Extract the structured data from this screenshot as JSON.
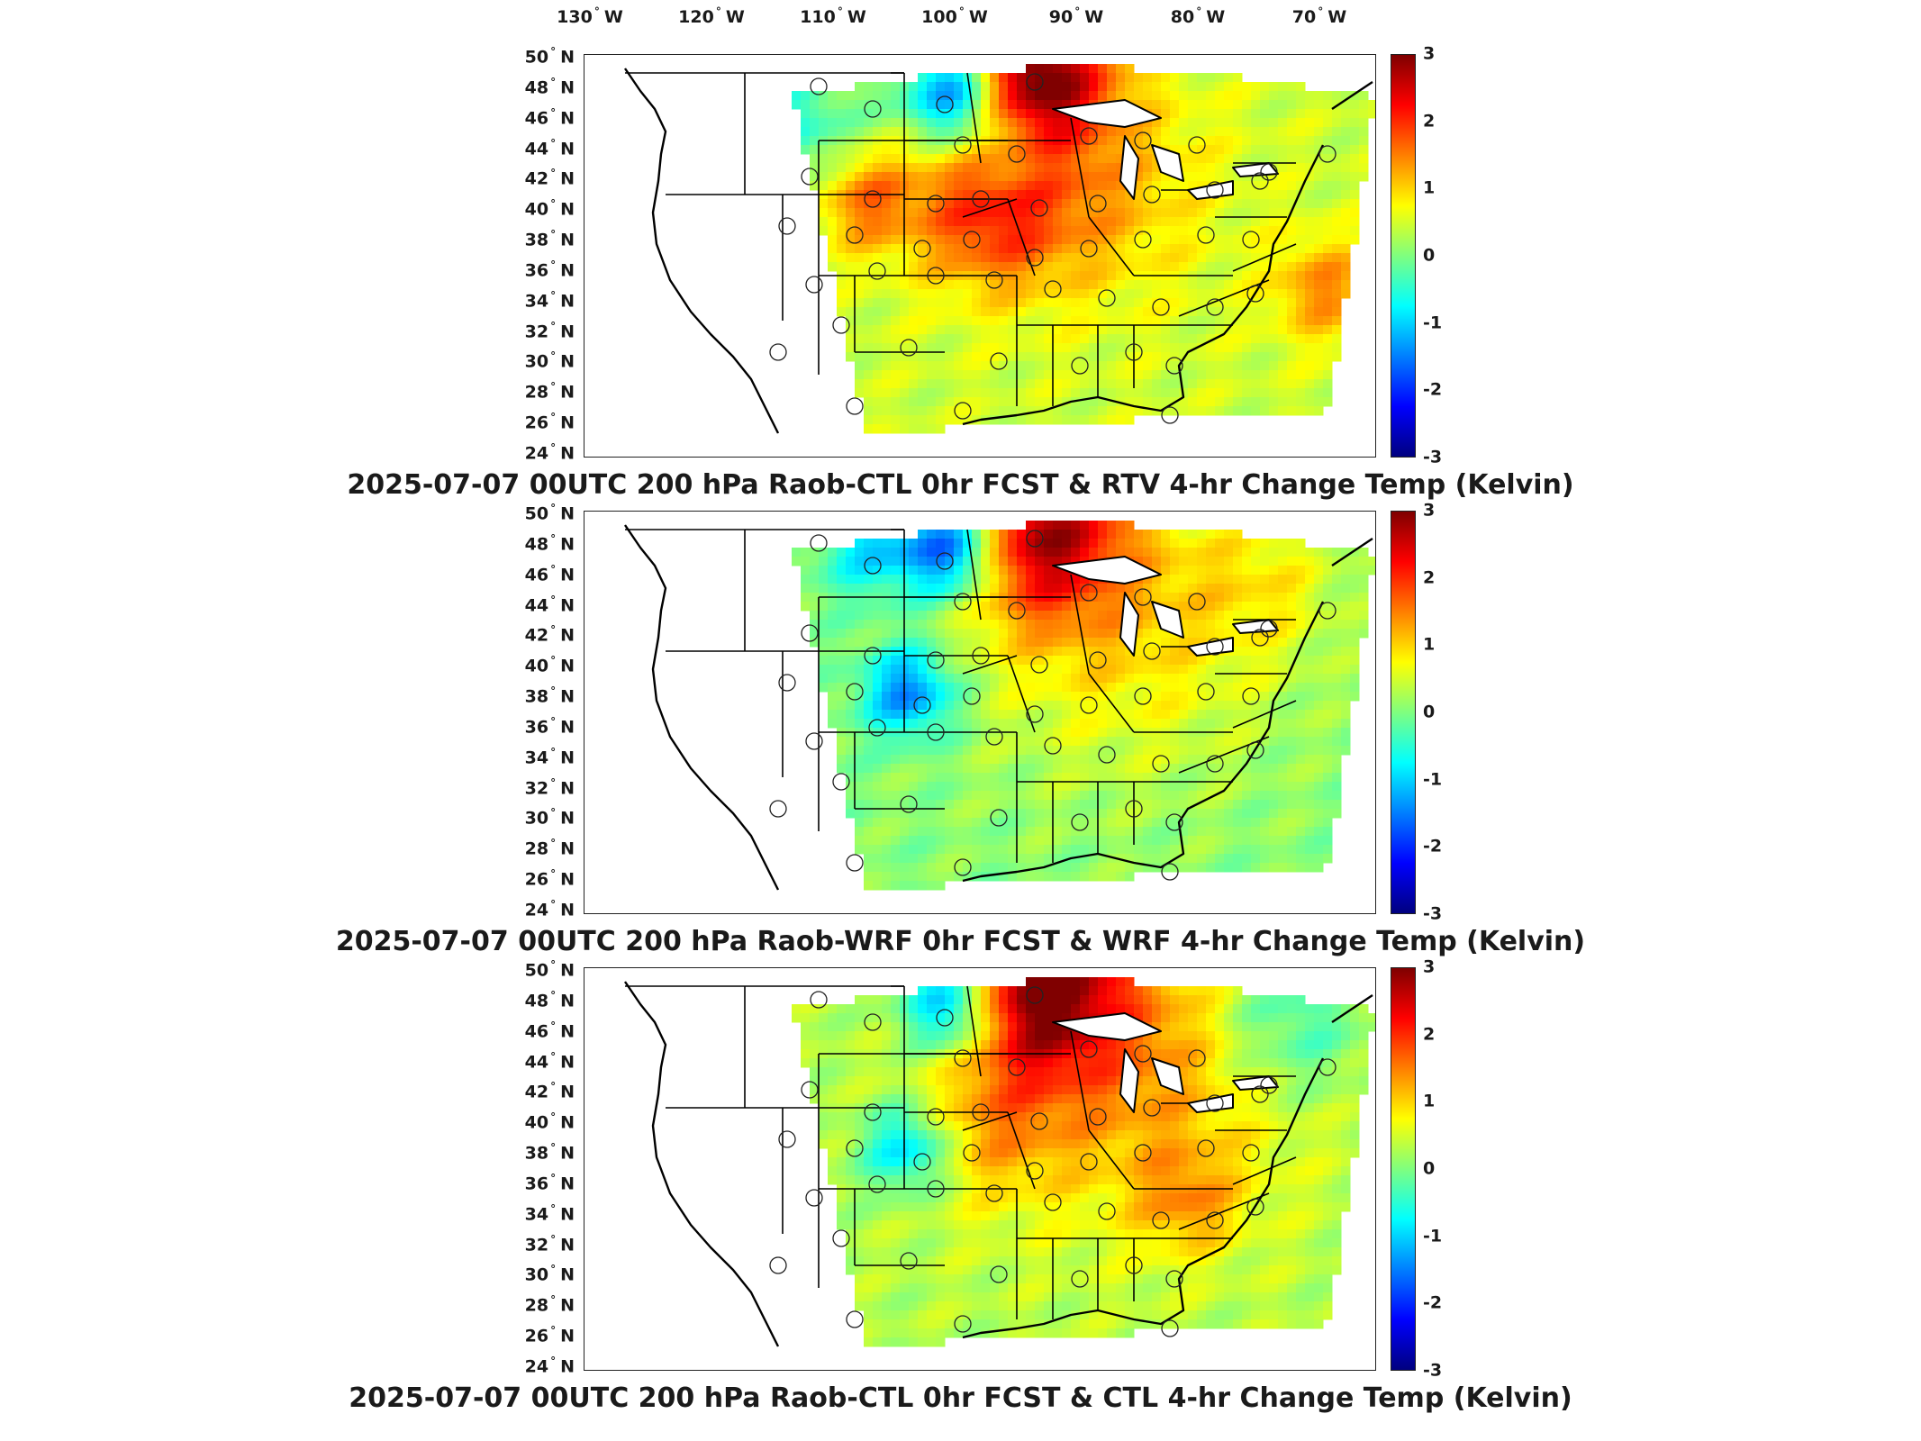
{
  "lon_labels": [
    "130",
    "120",
    "110",
    "100",
    "90",
    "80",
    "70"
  ],
  "lon_hemisphere": "W",
  "lat_labels": [
    "50",
    "48",
    "46",
    "44",
    "42",
    "40",
    "38",
    "36",
    "34",
    "32",
    "30",
    "28",
    "26",
    "24"
  ],
  "lat_hemisphere": "N",
  "degree_symbol": "°",
  "colorbar": {
    "ticks": [
      "3",
      "2",
      "1",
      "0",
      "-1",
      "-2",
      "-3"
    ],
    "range": [
      -3,
      3
    ],
    "colormap": "jet"
  },
  "panels": [
    {
      "title": "2025-07-07 00UTC 200 hPa Raob-CTL 0hr FCST & RTV 4-hr Change Temp (Kelvin)",
      "field_character": "mixed warm, north-central hotspot near 95W 48N, cold spot near 103W 48N"
    },
    {
      "title": "2025-07-07 00UTC 200 hPa Raob-WRF 0hr FCST & WRF 4-hr Change Temp (Kelvin)",
      "field_character": "mostly green-cyan, warm plume near 95W 48N, cold spot near 103W 48N and 105W 40N"
    },
    {
      "title": "2025-07-07 00UTC 200 hPa Raob-CTL 0hr FCST & CTL 4-hr Change Temp (Kelvin)",
      "field_character": "mostly green-yellow, warm plume near 95W 48N, cold spot near 103W 48N and 105W 40N"
    }
  ],
  "raob_station_marker": "open-circle"
}
